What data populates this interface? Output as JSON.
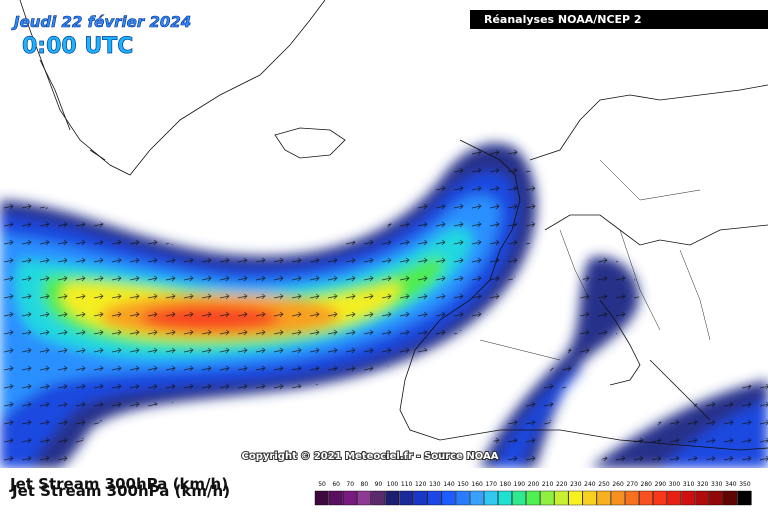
{
  "header": {
    "date": "Jeudi 22 février 2024",
    "time": "0:00 UTC",
    "source": "Réanalyses NOAA/NCEP 2"
  },
  "copyright": "Copyright © 2021 Meteociel.fr - Source NOAA",
  "footer": {
    "label": "Jet Stream 300hPa (km/h)",
    "legend": {
      "ticks": [
        50,
        60,
        70,
        80,
        90,
        100,
        110,
        120,
        130,
        140,
        150,
        160,
        170,
        180,
        190,
        200,
        210,
        220,
        230,
        240,
        250,
        260,
        270,
        280,
        290,
        300,
        310,
        320,
        330,
        340,
        350
      ],
      "colors": [
        "#3c0a3c",
        "#5a1060",
        "#781a80",
        "#8c3a94",
        "#5a2a6a",
        "#1e1e6e",
        "#1a2a9a",
        "#1836c8",
        "#1c46e6",
        "#1e5cff",
        "#2a7cff",
        "#38a0ff",
        "#30c8f0",
        "#20e0d0",
        "#30e890",
        "#50f050",
        "#90f040",
        "#c8f030",
        "#f8f020",
        "#f8d020",
        "#f8b020",
        "#f89020",
        "#f87020",
        "#f85020",
        "#f83818",
        "#e82010",
        "#d01010",
        "#b00c0c",
        "#900808",
        "#600404",
        "#000000"
      ]
    }
  }
}
